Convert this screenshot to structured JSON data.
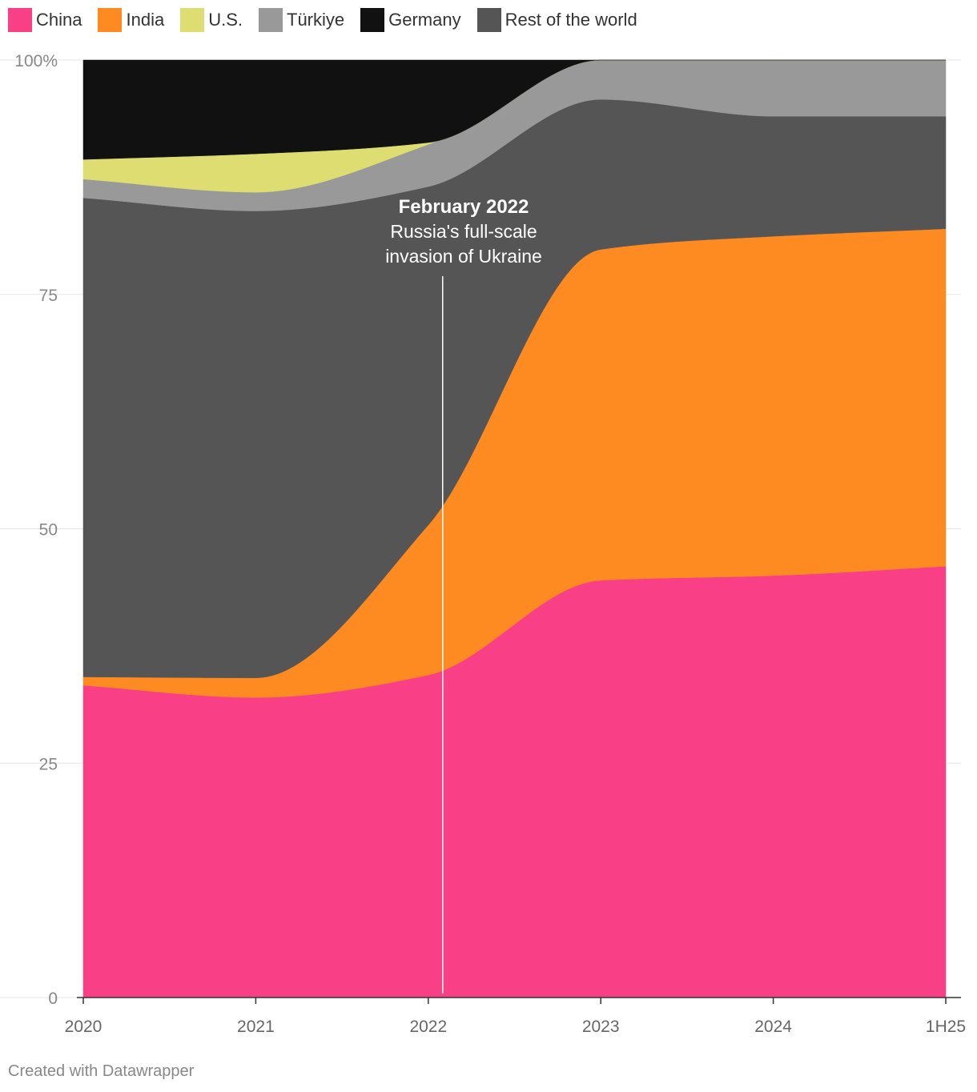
{
  "chart_data": {
    "type": "area",
    "stacked": true,
    "normalized": true,
    "title": "",
    "xlabel": "",
    "ylabel": "",
    "x": [
      "2020",
      "2021",
      "2022",
      "2023",
      "2024",
      "1H25"
    ],
    "ylim": [
      0,
      100
    ],
    "yticks": [
      0,
      25,
      50,
      75,
      100
    ],
    "ytick_labels": [
      "0",
      "25",
      "50",
      "75",
      "100%"
    ],
    "grid": true,
    "legend_position": "top-left",
    "series": [
      {
        "name": "China",
        "color": "#f93f85",
        "values": [
          33.3,
          32.0,
          34.4,
          44.5,
          45.0,
          46.0
        ]
      },
      {
        "name": "India",
        "color": "#fe8a22",
        "values": [
          0.9,
          2.1,
          16.0,
          35.3,
          36.2,
          36.0
        ]
      },
      {
        "name": "Rest of the world",
        "color": "#555555",
        "values": [
          51.1,
          49.8,
          36.1,
          16.0,
          12.8,
          12.0
        ]
      },
      {
        "name": "Türkiye",
        "color": "#999999",
        "values": [
          2.0,
          2.0,
          4.5,
          4.2,
          6.0,
          6.0
        ]
      },
      {
        "name": "U.S.",
        "color": "#dddd71",
        "values": [
          2.1,
          4.1,
          0.2,
          0.0,
          0.0,
          0.0
        ]
      },
      {
        "name": "Germany",
        "color": "#111111",
        "values": [
          10.6,
          10.0,
          8.8,
          0.0,
          0.0,
          0.0
        ]
      }
    ],
    "legend_order": [
      "China",
      "India",
      "U.S.",
      "Türkiye",
      "Germany",
      "Rest of the world"
    ],
    "annotation": {
      "x": "2022-02",
      "title": "February 2022",
      "lines": [
        "Russia's full-scale",
        "invasion of Ukraine"
      ]
    }
  },
  "footer": "Created with Datawrapper"
}
